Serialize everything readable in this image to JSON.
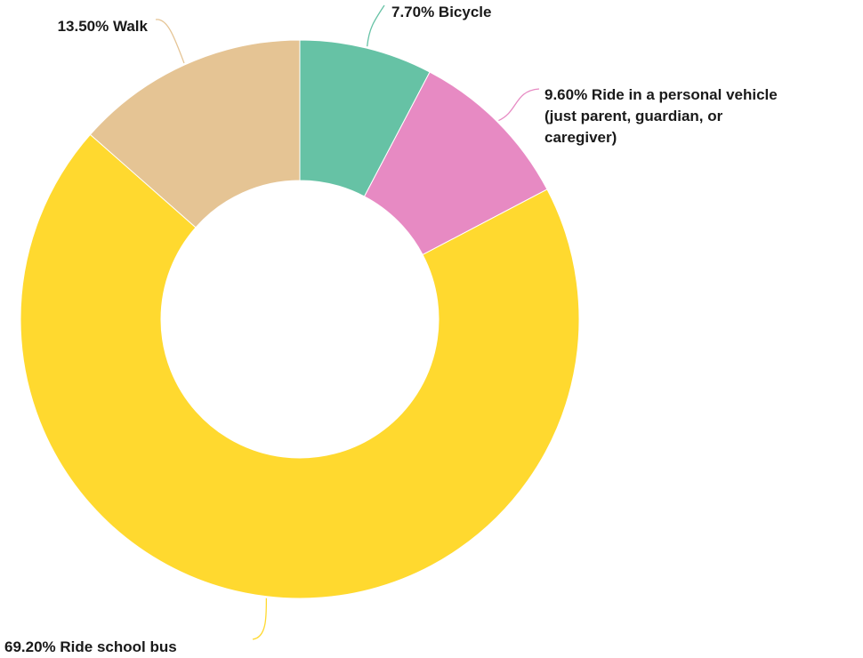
{
  "chart_data": {
    "type": "pie",
    "variant": "donut",
    "title": "",
    "slices": [
      {
        "label": "Bicycle",
        "value": 7.7,
        "display": "7.70% Bicycle",
        "color": "#66c2a5"
      },
      {
        "label": "Ride in a personal vehicle (just parent, guardian, or caregiver)",
        "value": 9.6,
        "display_lines": [
          "9.60% Ride in a personal vehicle",
          "(just parent, guardian, or",
          "caregiver)"
        ],
        "color": "#e78ac3"
      },
      {
        "label": "Ride school bus",
        "value": 69.2,
        "display": "69.20% Ride school bus",
        "color": "#ffd92f"
      },
      {
        "label": "Walk",
        "value": 13.5,
        "display": "13.50% Walk",
        "color": "#e5c494"
      }
    ],
    "legend": "none",
    "start_angle": "12 o'clock",
    "direction": "clockwise"
  }
}
